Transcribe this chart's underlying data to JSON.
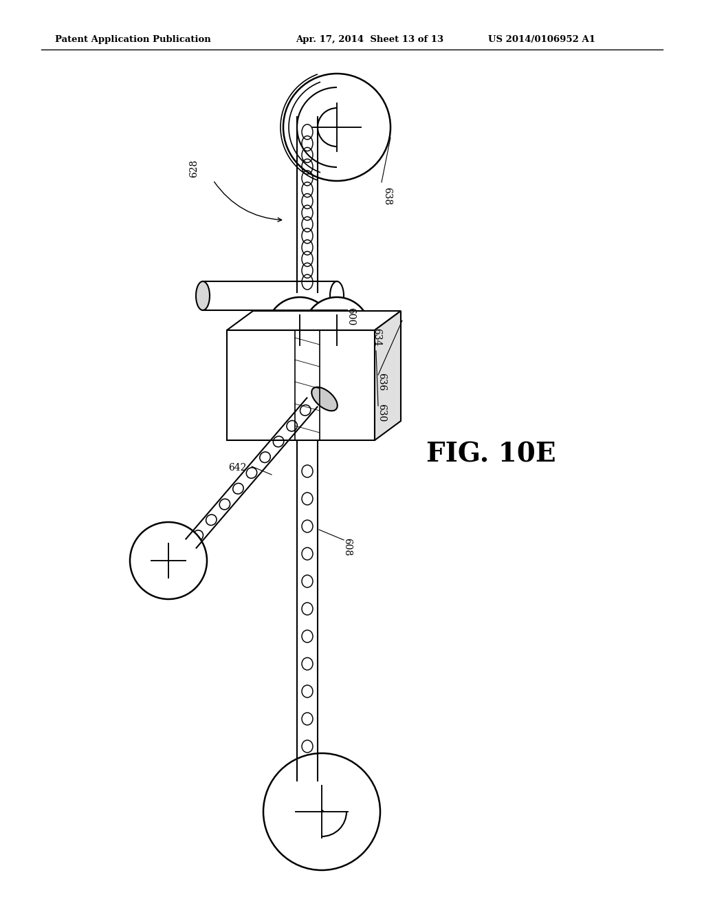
{
  "title_left": "Patent Application Publication",
  "title_mid": "Apr. 17, 2014  Sheet 13 of 13",
  "title_right": "US 2014/0106952 A1",
  "fig_label": "FIG. 10E",
  "bg_color": "#ffffff",
  "line_color": "#000000"
}
